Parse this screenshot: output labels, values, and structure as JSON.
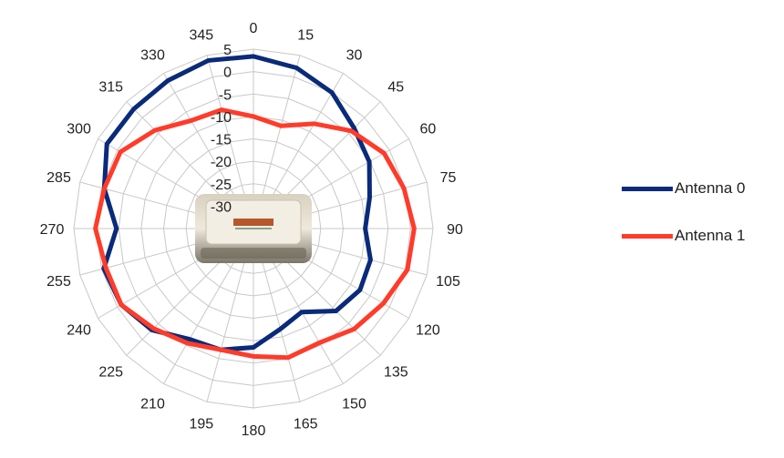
{
  "chart_data": {
    "type": "radar",
    "angles": [
      0,
      15,
      30,
      45,
      60,
      75,
      90,
      105,
      120,
      135,
      150,
      165,
      180,
      195,
      210,
      225,
      240,
      255,
      270,
      285,
      300,
      315,
      330,
      345
    ],
    "angle_labels": [
      "0",
      "15",
      "30",
      "45",
      "60",
      "75",
      "90",
      "105",
      "120",
      "135",
      "150",
      "165",
      "180",
      "195",
      "210",
      "225",
      "240",
      "255",
      "270",
      "285",
      "300",
      "315",
      "330",
      "345"
    ],
    "r_ticks": [
      5,
      0,
      -5,
      -10,
      -15,
      -20,
      -25,
      -30
    ],
    "r_tick_labels": [
      "5",
      "0",
      "-5",
      "-10",
      "-15",
      "-20",
      "-25",
      "-30"
    ],
    "rlim": [
      -35,
      5
    ],
    "grid": true,
    "legend_position": "right",
    "center_image": "aruba-access-point-photo",
    "series": [
      {
        "name": "Antenna 0",
        "color": "#0a2a7a",
        "values": [
          3.4,
          2.1,
          0.0,
          -3.3,
          -5.2,
          -8.2,
          -10.1,
          -8.0,
          -7.6,
          -9.0,
          -13.5,
          -11.8,
          -8.5,
          -7.0,
          -6.5,
          -3.0,
          -1.0,
          -0.5,
          -4.5,
          -0.6,
          2.7,
          2.7,
          3.1,
          3.8
        ]
      },
      {
        "name": "Antenna 1",
        "color": "#ff3b2a",
        "values": [
          -10.0,
          -11.3,
          -8.0,
          -4.2,
          -1.4,
          -0.3,
          0.8,
          0.5,
          -1.6,
          -3.3,
          -5.6,
          -5.2,
          -6.5,
          -7.0,
          -5.5,
          -3.5,
          -1.0,
          -1.0,
          0.2,
          -0.6,
          -0.8,
          -4.0,
          -7.2,
          -7.6
        ]
      }
    ]
  }
}
